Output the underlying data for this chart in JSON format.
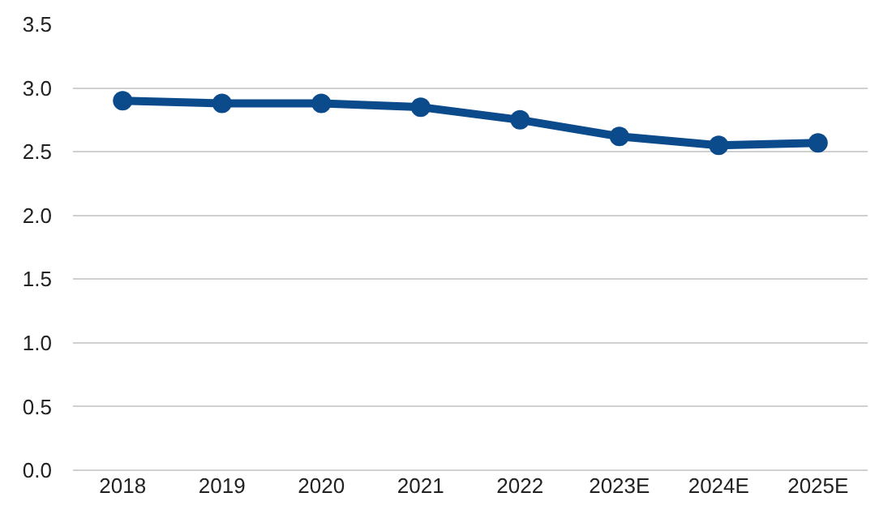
{
  "chart_data": {
    "type": "line",
    "categories": [
      "2018",
      "2019",
      "2020",
      "2021",
      "2022",
      "2023E",
      "2024E",
      "2025E"
    ],
    "series": [
      {
        "color": "#0b4a8b",
        "values": [
          2.9,
          2.88,
          2.88,
          2.85,
          2.75,
          2.62,
          2.55,
          2.57
        ]
      }
    ],
    "ylim": [
      0,
      3.5
    ],
    "yticks": [
      {
        "value": 0,
        "label": "0.0"
      },
      {
        "value": 0.5,
        "label": "0.5"
      },
      {
        "value": 1,
        "label": "1.0"
      },
      {
        "value": 1.5,
        "label": "1.5"
      },
      {
        "value": 2,
        "label": "2.0"
      },
      {
        "value": 2.5,
        "label": "2.5"
      },
      {
        "value": 3,
        "label": "3.0"
      },
      {
        "value": 3.5,
        "label": "3.5"
      }
    ],
    "grid": "y",
    "marker": "circle",
    "line_style": "solid"
  }
}
